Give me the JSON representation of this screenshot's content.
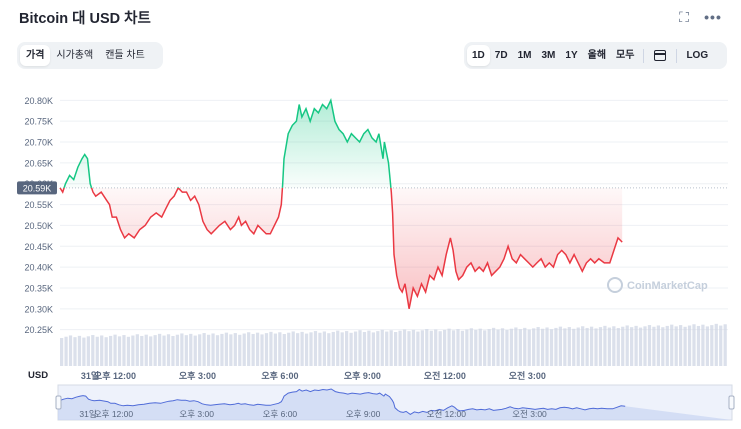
{
  "header": {
    "title": "Bitcoin 대 USD 차트",
    "expand_icon": "expand-icon",
    "more_icon": "more-icon"
  },
  "view_tabs": [
    {
      "label": "가격",
      "active": true
    },
    {
      "label": "시가총액",
      "active": false
    },
    {
      "label": "캔들 차트",
      "active": false
    }
  ],
  "range_tabs": [
    {
      "label": "1D",
      "active": true
    },
    {
      "label": "7D",
      "active": false
    },
    {
      "label": "1M",
      "active": false
    },
    {
      "label": "3M",
      "active": false
    },
    {
      "label": "1Y",
      "active": false
    },
    {
      "label": "올해",
      "active": false
    },
    {
      "label": "모두",
      "active": false
    }
  ],
  "calendar_icon": "calendar-icon",
  "log_label": "LOG",
  "currency_label": "USD",
  "watermark": "CoinMarketCap",
  "colors": {
    "up": "#16c784",
    "down": "#ea3943",
    "volume": "#cfd6e4",
    "current_badge": "#58667e"
  },
  "chart_data": {
    "type": "area",
    "y_unit": "USD",
    "ylim": [
      20.23,
      20.82
    ],
    "yticks": [
      "20.25K",
      "20.30K",
      "20.35K",
      "20.40K",
      "20.45K",
      "20.50K",
      "20.55K",
      "20.60K",
      "20.65K",
      "20.70K",
      "20.75K",
      "20.80K"
    ],
    "ytick_values": [
      20.25,
      20.3,
      20.35,
      20.4,
      20.45,
      20.5,
      20.55,
      20.6,
      20.65,
      20.7,
      20.75,
      20.8
    ],
    "current_price_label": "20.59K",
    "baseline": 20.59,
    "xlim": [
      10.0,
      34.3
    ],
    "xticks": [
      {
        "label": "31일",
        "t": 10.0
      },
      {
        "label": "오후 12:00",
        "t": 12.0
      },
      {
        "label": "오후 3:00",
        "t": 15.0
      },
      {
        "label": "오후 6:00",
        "t": 18.0
      },
      {
        "label": "오후 9:00",
        "t": 21.0
      },
      {
        "label": "오전 12:00",
        "t": 24.0
      },
      {
        "label": "오전 3:00",
        "t": 27.0
      }
    ],
    "grid": true,
    "legend": "none",
    "series": [
      {
        "values": [
          [
            10.0,
            20.59
          ],
          [
            10.1,
            20.58
          ],
          [
            10.2,
            20.6
          ],
          [
            10.35,
            20.62
          ],
          [
            10.5,
            20.61
          ],
          [
            10.65,
            20.64
          ],
          [
            10.8,
            20.66
          ],
          [
            10.9,
            20.67
          ],
          [
            11.0,
            20.66
          ],
          [
            11.1,
            20.6
          ],
          [
            11.2,
            20.58
          ],
          [
            11.3,
            20.57
          ],
          [
            11.5,
            20.58
          ],
          [
            11.7,
            20.56
          ],
          [
            11.8,
            20.55
          ],
          [
            11.9,
            20.52
          ],
          [
            12.05,
            20.52
          ],
          [
            12.2,
            20.49
          ],
          [
            12.35,
            20.47
          ],
          [
            12.5,
            20.48
          ],
          [
            12.7,
            20.47
          ],
          [
            12.9,
            20.49
          ],
          [
            13.1,
            20.5
          ],
          [
            13.3,
            20.52
          ],
          [
            13.5,
            20.53
          ],
          [
            13.7,
            20.52
          ],
          [
            13.85,
            20.54
          ],
          [
            14.0,
            20.56
          ],
          [
            14.15,
            20.57
          ],
          [
            14.3,
            20.59
          ],
          [
            14.45,
            20.58
          ],
          [
            14.6,
            20.58
          ],
          [
            14.75,
            20.56
          ],
          [
            14.9,
            20.57
          ],
          [
            15.05,
            20.55
          ],
          [
            15.2,
            20.51
          ],
          [
            15.35,
            20.49
          ],
          [
            15.5,
            20.48
          ],
          [
            15.65,
            20.49
          ],
          [
            15.8,
            20.5
          ],
          [
            16.0,
            20.51
          ],
          [
            16.2,
            20.49
          ],
          [
            16.35,
            20.5
          ],
          [
            16.5,
            20.52
          ],
          [
            16.6,
            20.5
          ],
          [
            16.75,
            20.51
          ],
          [
            16.9,
            20.49
          ],
          [
            17.05,
            20.48
          ],
          [
            17.2,
            20.5
          ],
          [
            17.35,
            20.49
          ],
          [
            17.5,
            20.48
          ],
          [
            17.65,
            20.48
          ],
          [
            17.8,
            20.5
          ],
          [
            17.95,
            20.52
          ],
          [
            18.05,
            20.55
          ],
          [
            18.1,
            20.6
          ],
          [
            18.15,
            20.66
          ],
          [
            18.3,
            20.72
          ],
          [
            18.45,
            20.74
          ],
          [
            18.6,
            20.75
          ],
          [
            18.7,
            20.79
          ],
          [
            18.8,
            20.76
          ],
          [
            18.95,
            20.78
          ],
          [
            19.1,
            20.75
          ],
          [
            19.25,
            20.78
          ],
          [
            19.4,
            20.77
          ],
          [
            19.55,
            20.79
          ],
          [
            19.7,
            20.78
          ],
          [
            19.85,
            20.8
          ],
          [
            20.0,
            20.75
          ],
          [
            20.15,
            20.73
          ],
          [
            20.3,
            20.72
          ],
          [
            20.45,
            20.7
          ],
          [
            20.6,
            20.72
          ],
          [
            20.75,
            20.71
          ],
          [
            20.9,
            20.7
          ],
          [
            21.05,
            20.72
          ],
          [
            21.2,
            20.73
          ],
          [
            21.35,
            20.71
          ],
          [
            21.5,
            20.7
          ],
          [
            21.6,
            20.72
          ],
          [
            21.75,
            20.66
          ],
          [
            21.8,
            20.7
          ],
          [
            21.95,
            20.65
          ],
          [
            22.05,
            20.58
          ],
          [
            22.1,
            20.53
          ],
          [
            22.15,
            20.43
          ],
          [
            22.25,
            20.38
          ],
          [
            22.35,
            20.35
          ],
          [
            22.45,
            20.34
          ],
          [
            22.55,
            20.36
          ],
          [
            22.7,
            20.3
          ],
          [
            22.85,
            20.35
          ],
          [
            23.0,
            20.33
          ],
          [
            23.15,
            20.36
          ],
          [
            23.3,
            20.34
          ],
          [
            23.45,
            20.38
          ],
          [
            23.6,
            20.37
          ],
          [
            23.75,
            20.4
          ],
          [
            23.9,
            20.38
          ],
          [
            24.05,
            20.43
          ],
          [
            24.2,
            20.47
          ],
          [
            24.3,
            20.44
          ],
          [
            24.4,
            20.39
          ],
          [
            24.5,
            20.37
          ],
          [
            24.65,
            20.38
          ],
          [
            24.8,
            20.4
          ],
          [
            24.95,
            20.41
          ],
          [
            25.1,
            20.39
          ],
          [
            25.25,
            20.4
          ],
          [
            25.4,
            20.39
          ],
          [
            25.55,
            20.41
          ],
          [
            25.7,
            20.38
          ],
          [
            25.85,
            20.39
          ],
          [
            26.0,
            20.4
          ],
          [
            26.15,
            20.42
          ],
          [
            26.3,
            20.45
          ],
          [
            26.45,
            20.42
          ],
          [
            26.6,
            20.41
          ],
          [
            26.75,
            20.43
          ],
          [
            26.9,
            20.42
          ],
          [
            27.05,
            20.41
          ],
          [
            27.2,
            20.4
          ],
          [
            27.35,
            20.41
          ],
          [
            27.5,
            20.42
          ],
          [
            27.65,
            20.4
          ],
          [
            27.8,
            20.41
          ],
          [
            27.95,
            20.4
          ],
          [
            28.1,
            20.43
          ],
          [
            28.25,
            20.44
          ],
          [
            28.4,
            20.43
          ],
          [
            28.55,
            20.41
          ],
          [
            28.7,
            20.43
          ],
          [
            28.85,
            20.41
          ],
          [
            29.0,
            20.39
          ],
          [
            29.15,
            20.41
          ],
          [
            29.3,
            20.42
          ],
          [
            29.45,
            20.41
          ],
          [
            29.6,
            20.42
          ],
          [
            29.8,
            20.41
          ],
          [
            30.0,
            20.41
          ],
          [
            30.15,
            20.44
          ],
          [
            30.3,
            20.47
          ],
          [
            30.45,
            20.46
          ]
        ]
      }
    ]
  }
}
